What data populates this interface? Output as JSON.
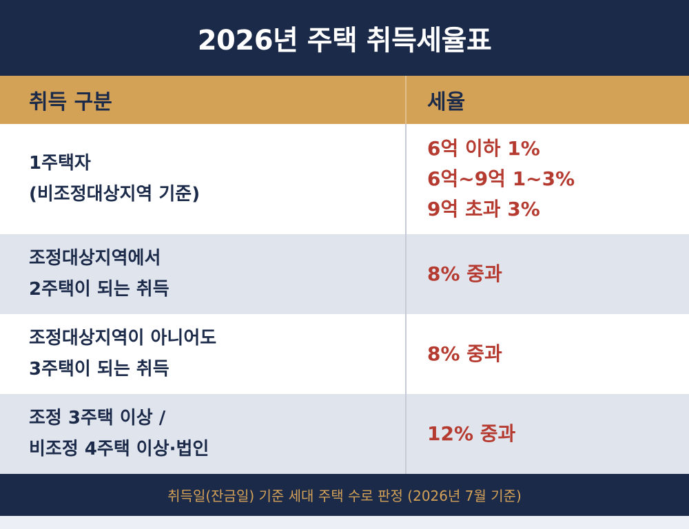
{
  "title": "2026년 주택 취득세율표",
  "header": {
    "col1": "취득 구분",
    "col2": "세율"
  },
  "rows": [
    {
      "condition": [
        "1주택자",
        "(비조정대상지역 기준)"
      ],
      "rate": [
        "6억 이하 1%",
        "6억~9억 1~3%",
        "9억 초과 3%"
      ]
    },
    {
      "condition": [
        "조정대상지역에서",
        "2주택이 되는 취득"
      ],
      "rate": [
        "8% 중과"
      ]
    },
    {
      "condition": [
        "조정대상지역이 아니어도",
        "3주택이 되는 취득"
      ],
      "rate": [
        "8% 중과"
      ]
    },
    {
      "condition": [
        "조정 3주택 이상 /",
        "비조정 4주택 이상·법인"
      ],
      "rate": [
        "12% 중과"
      ]
    }
  ],
  "footnote": "취득일(잔금일) 기준 세대 주택 수로 판정 (2026년 7월 기준)",
  "colors": {
    "navy": "#1c2a4a",
    "gold": "#d4a256",
    "red": "#b53a30",
    "row_alt": "#e0e4ed"
  }
}
